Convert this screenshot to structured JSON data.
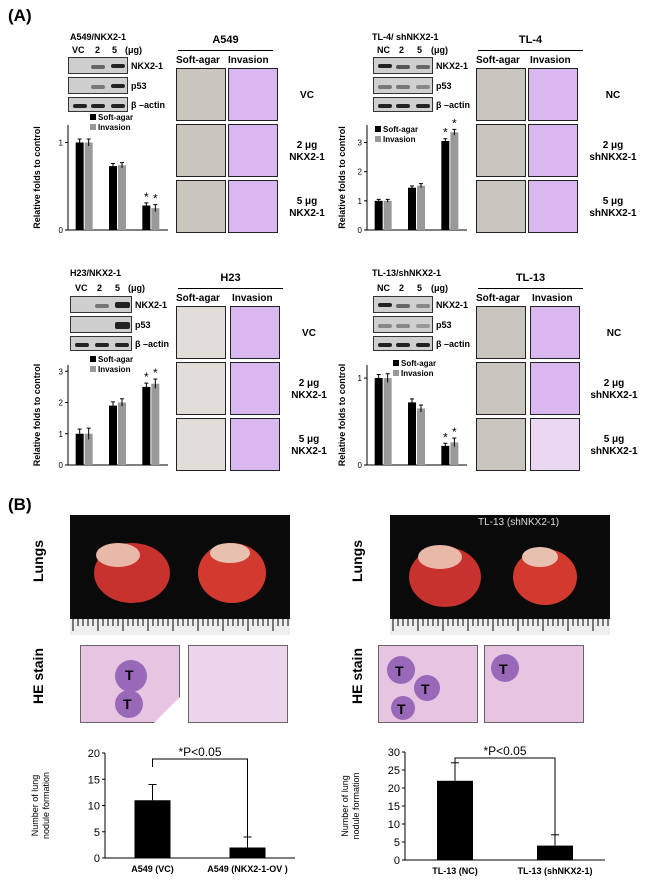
{
  "panels": {
    "a": "(A)",
    "b": "(B)"
  },
  "common": {
    "soft_agar": "Soft-agar",
    "invasion": "Invasion",
    "ug": "(μg)",
    "nkx21": "NKX2-1",
    "p53": "p53",
    "bactin": "β –actin",
    "ylabel": "Relative folds to control",
    "star": "*"
  },
  "a549": {
    "blot_title": "A549/NKX2-1",
    "lanes": [
      "VC",
      "2",
      "5"
    ],
    "img_title": "A549",
    "conds": [
      "VC",
      "2 μg\nNKX2-1",
      "5 μg\nNKX2-1"
    ]
  },
  "tl4": {
    "blot_title": "TL-4/ shNKX2-1",
    "lanes": [
      "NC",
      "2",
      "5"
    ],
    "img_title": "TL-4",
    "conds": [
      "NC",
      "2 μg\nshNKX2-1",
      "5 μg\nshNKX2-1"
    ]
  },
  "h23": {
    "blot_title": "H23/NKX2-1",
    "lanes": [
      "VC",
      "2",
      "5"
    ],
    "img_title": "H23",
    "conds": [
      "VC",
      "2 μg\nNKX2-1",
      "5 μg\nNKX2-1"
    ]
  },
  "tl13": {
    "blot_title": "TL-13/shNKX2-1",
    "lanes": [
      "NC",
      "2",
      "5"
    ],
    "img_title": "TL-13",
    "conds": [
      "NC",
      "2 μg\nshNKX2-1",
      "5 μg\nshNKX2-1"
    ]
  },
  "lungs": {
    "lungs": "Lungs",
    "he": "HE stain",
    "tl13_title": "TL-13 (shNKX2-1)",
    "t": "T"
  },
  "chart_data": [
    {
      "type": "bar",
      "id": "a549",
      "categories": [
        "VC",
        "2 μg",
        "5 μg"
      ],
      "series": [
        {
          "name": "Soft-agar",
          "values": [
            1.0,
            0.73,
            0.28
          ]
        },
        {
          "name": "Invasion",
          "values": [
            1.0,
            0.74,
            0.25
          ]
        }
      ],
      "errors": [
        [
          0.04,
          0.03,
          0.03
        ],
        [
          0.04,
          0.03,
          0.04
        ]
      ],
      "ylim": [
        0,
        1.2
      ],
      "ticks": [
        0,
        1
      ],
      "legend": [
        "Soft-agar",
        "Invasion"
      ]
    },
    {
      "type": "bar",
      "id": "tl4",
      "categories": [
        "NC",
        "2 μg",
        "5 μg"
      ],
      "series": [
        {
          "name": "Soft-agar",
          "values": [
            1.0,
            1.45,
            3.05
          ]
        },
        {
          "name": "Invasion",
          "values": [
            1.0,
            1.52,
            3.35
          ]
        }
      ],
      "errors": [
        [
          0.05,
          0.06,
          0.08
        ],
        [
          0.05,
          0.07,
          0.1
        ]
      ],
      "ylim": [
        0,
        3.6
      ],
      "ticks": [
        0,
        1,
        2,
        3
      ],
      "legend": [
        "Soft-agar",
        "Invasion"
      ]
    },
    {
      "type": "bar",
      "id": "h23",
      "categories": [
        "VC",
        "2 μg",
        "5 μg"
      ],
      "series": [
        {
          "name": "Soft-agar",
          "values": [
            1.0,
            1.9,
            2.5
          ]
        },
        {
          "name": "Invasion",
          "values": [
            1.0,
            2.0,
            2.6
          ]
        }
      ],
      "errors": [
        [
          0.15,
          0.12,
          0.12
        ],
        [
          0.18,
          0.12,
          0.15
        ]
      ],
      "ylim": [
        0,
        3.2
      ],
      "ticks": [
        0,
        1,
        2,
        3
      ],
      "legend": [
        "Soft-agar",
        "Invasion"
      ]
    },
    {
      "type": "bar",
      "id": "tl13",
      "categories": [
        "NC",
        "2 μg",
        "5 μg"
      ],
      "series": [
        {
          "name": "Soft-agar",
          "values": [
            1.0,
            0.72,
            0.22
          ]
        },
        {
          "name": "Invasion",
          "values": [
            1.0,
            0.65,
            0.26
          ]
        }
      ],
      "errors": [
        [
          0.04,
          0.04,
          0.03
        ],
        [
          0.05,
          0.04,
          0.05
        ]
      ],
      "ylim": [
        0,
        1.15
      ],
      "ticks": [
        0,
        1
      ],
      "legend": [
        "Soft-agar",
        "Invasion"
      ]
    },
    {
      "type": "bar",
      "id": "nodA",
      "categories": [
        "A549 (VC)",
        "A549 (NKX2-1-OV )"
      ],
      "values": [
        11,
        2
      ],
      "errors": [
        3,
        2
      ],
      "ylim": [
        0,
        20
      ],
      "ticks": [
        0,
        5,
        10,
        15,
        20
      ],
      "ylabel": "Number of lung\nnodule formation",
      "pvalue": "*P<0.05"
    },
    {
      "type": "bar",
      "id": "nodB",
      "categories": [
        "TL-13 (NC)",
        "TL-13 (shNKX2-1)"
      ],
      "values": [
        22,
        4
      ],
      "errors": [
        5,
        3
      ],
      "ylim": [
        0,
        30
      ],
      "ticks": [
        0,
        5,
        10,
        15,
        20,
        25,
        30
      ],
      "ylabel": "Number of lung\nnodule formation",
      "pvalue": "*P<0.05"
    }
  ]
}
